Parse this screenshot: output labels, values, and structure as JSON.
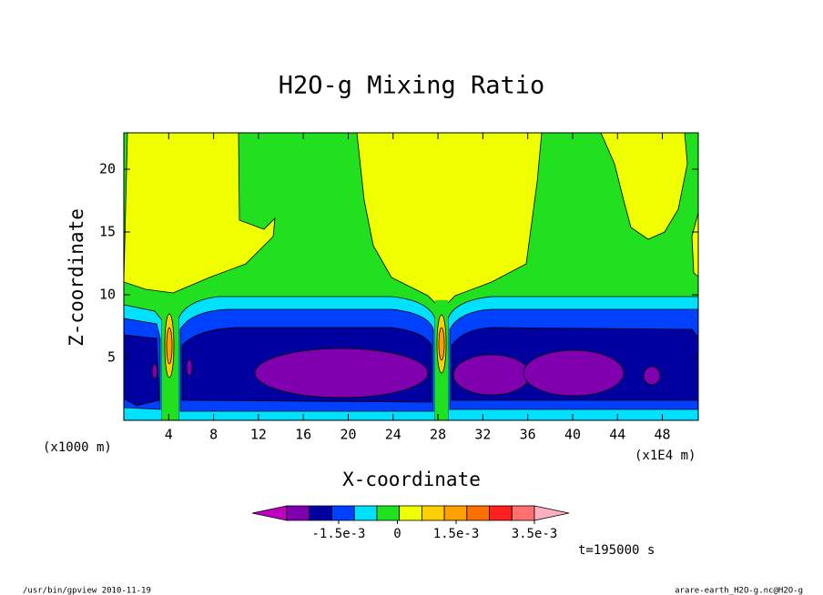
{
  "chart_data": {
    "type": "contour",
    "title": "H2O-g Mixing Ratio",
    "x_label": "X-coordinate",
    "y_label": "Z-coordinate",
    "x_unit": "(x1E4 m)",
    "y_unit": "(x1000 m)",
    "xlim": [
      0,
      51.2
    ],
    "xticks": [
      4,
      8,
      12,
      16,
      20,
      24,
      28,
      32,
      36,
      40,
      44,
      48
    ],
    "ylim": [
      0,
      22.9
    ],
    "yticks": [
      5,
      10,
      15,
      20
    ],
    "colorbar": {
      "colors": [
        "#c000c0",
        "#8000b0",
        "#0000a0",
        "#0040ff",
        "#00e0ff",
        "#20e020",
        "#f0ff00",
        "#ffd000",
        "#ffa000",
        "#ff7000",
        "#ff2020",
        "#ff7070",
        "#ffb0c0"
      ],
      "ticks": [
        {
          "value": -0.0015,
          "label": "-1.5e-3"
        },
        0,
        {
          "value": 0.0015,
          "label": "1.5e-3"
        },
        {
          "value": 0.0035,
          "label": "3.5e-3"
        }
      ]
    },
    "time_label": "t=195000 s"
  },
  "footer": {
    "left": "/usr/bin/gpview  2010-11-19",
    "right": "arare-earth_H2O-g.nc@H2O-g"
  }
}
